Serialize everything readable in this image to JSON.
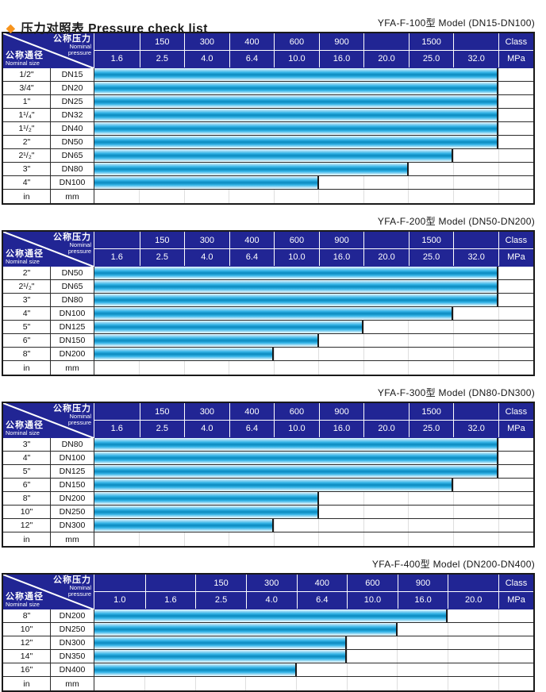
{
  "page": {
    "diamond": "◆",
    "title": "压力对照表 Pressure check list"
  },
  "colors": {
    "header_navy": "#212594",
    "bar_cyan": "#38b6e8",
    "bar_dark_center": "#1090c5",
    "diamond_orange": "#f7941d",
    "grid_black": "#1a1a1a"
  },
  "header_corner": {
    "pressure_zh": "公称压力",
    "pressure_en_line1": "Nominal",
    "pressure_en_line2": "pressure",
    "size_zh": "公称通径",
    "size_en": "Nominal size"
  },
  "tables": [
    {
      "model_title": "YFA-F-100型  Model (DN15-DN100)",
      "class_row": [
        "",
        "150",
        "300",
        "400",
        "600",
        "900",
        "",
        "1500",
        "",
        "Class"
      ],
      "mpa_row": [
        "1.6",
        "2.5",
        "4.0",
        "6.4",
        "10.0",
        "16.0",
        "20.0",
        "25.0",
        "32.0",
        "MPa"
      ],
      "rows": [
        {
          "size": "1/2\"",
          "dn": "DN15",
          "bar_cols": 9,
          "max_mpa": "32.0"
        },
        {
          "size": "3/4\"",
          "dn": "DN20",
          "bar_cols": 9,
          "max_mpa": "32.0"
        },
        {
          "size": "1\"",
          "dn": "DN25",
          "bar_cols": 9,
          "max_mpa": "32.0"
        },
        {
          "size": "1¹/₄\"",
          "dn": "DN32",
          "bar_cols": 9,
          "max_mpa": "32.0"
        },
        {
          "size": "1¹/₂\"",
          "dn": "DN40",
          "bar_cols": 9,
          "max_mpa": "32.0"
        },
        {
          "size": "2\"",
          "dn": "DN50",
          "bar_cols": 9,
          "max_mpa": "32.0"
        },
        {
          "size": "2¹/₂\"",
          "dn": "DN65",
          "bar_cols": 8,
          "max_mpa": "25.0"
        },
        {
          "size": "3\"",
          "dn": "DN80",
          "bar_cols": 7,
          "max_mpa": "20.0"
        },
        {
          "size": "4\"",
          "dn": "DN100",
          "bar_cols": 5,
          "max_mpa": "10.0"
        },
        {
          "size": "in",
          "dn": "mm",
          "bar_cols": 0,
          "max_mpa": ""
        }
      ]
    },
    {
      "model_title": "YFA-F-200型  Model (DN50-DN200)",
      "class_row": [
        "",
        "150",
        "300",
        "400",
        "600",
        "900",
        "",
        "1500",
        "",
        "Class"
      ],
      "mpa_row": [
        "1.6",
        "2.5",
        "4.0",
        "6.4",
        "10.0",
        "16.0",
        "20.0",
        "25.0",
        "32.0",
        "MPa"
      ],
      "rows": [
        {
          "size": "2\"",
          "dn": "DN50",
          "bar_cols": 9,
          "max_mpa": "32.0"
        },
        {
          "size": "2¹/₂\"",
          "dn": "DN65",
          "bar_cols": 9,
          "max_mpa": "32.0"
        },
        {
          "size": "3\"",
          "dn": "DN80",
          "bar_cols": 9,
          "max_mpa": "32.0"
        },
        {
          "size": "4\"",
          "dn": "DN100",
          "bar_cols": 8,
          "max_mpa": "25.0"
        },
        {
          "size": "5\"",
          "dn": "DN125",
          "bar_cols": 6,
          "max_mpa": "16.0"
        },
        {
          "size": "6\"",
          "dn": "DN150",
          "bar_cols": 5,
          "max_mpa": "10.0"
        },
        {
          "size": "8\"",
          "dn": "DN200",
          "bar_cols": 4,
          "max_mpa": "6.4"
        },
        {
          "size": "in",
          "dn": "mm",
          "bar_cols": 0,
          "max_mpa": ""
        }
      ]
    },
    {
      "model_title": "YFA-F-300型  Model (DN80-DN300)",
      "class_row": [
        "",
        "150",
        "300",
        "400",
        "600",
        "900",
        "",
        "1500",
        "",
        "Class"
      ],
      "mpa_row": [
        "1.6",
        "2.5",
        "4.0",
        "6.4",
        "10.0",
        "16.0",
        "20.0",
        "25.0",
        "32.0",
        "MPa"
      ],
      "rows": [
        {
          "size": "3\"",
          "dn": "DN80",
          "bar_cols": 9,
          "max_mpa": "32.0"
        },
        {
          "size": "4\"",
          "dn": "DN100",
          "bar_cols": 9,
          "max_mpa": "32.0"
        },
        {
          "size": "5\"",
          "dn": "DN125",
          "bar_cols": 9,
          "max_mpa": "32.0"
        },
        {
          "size": "6\"",
          "dn": "DN150",
          "bar_cols": 8,
          "max_mpa": "25.0"
        },
        {
          "size": "8\"",
          "dn": "DN200",
          "bar_cols": 5,
          "max_mpa": "10.0"
        },
        {
          "size": "10\"",
          "dn": "DN250",
          "bar_cols": 5,
          "max_mpa": "10.0"
        },
        {
          "size": "12\"",
          "dn": "DN300",
          "bar_cols": 4,
          "max_mpa": "6.4"
        },
        {
          "size": "in",
          "dn": "mm",
          "bar_cols": 0,
          "max_mpa": ""
        }
      ]
    },
    {
      "model_title": "YFA-F-400型  Model (DN200-DN400)",
      "class_row": [
        "",
        "",
        "150",
        "300",
        "400",
        "600",
        "900",
        "",
        "Class"
      ],
      "mpa_row": [
        "1.0",
        "1.6",
        "2.5",
        "4.0",
        "6.4",
        "10.0",
        "16.0",
        "20.0",
        "MPa"
      ],
      "rows": [
        {
          "size": "8\"",
          "dn": "DN200",
          "bar_cols": 7,
          "max_mpa": "16.0"
        },
        {
          "size": "10\"",
          "dn": "DN250",
          "bar_cols": 6,
          "max_mpa": "10.0"
        },
        {
          "size": "12\"",
          "dn": "DN300",
          "bar_cols": 5,
          "max_mpa": "6.4"
        },
        {
          "size": "14\"",
          "dn": "DN350",
          "bar_cols": 5,
          "max_mpa": "6.4"
        },
        {
          "size": "16\"",
          "dn": "DN400",
          "bar_cols": 4,
          "max_mpa": "4.0"
        },
        {
          "size": "in",
          "dn": "mm",
          "bar_cols": 0,
          "max_mpa": ""
        }
      ]
    }
  ]
}
